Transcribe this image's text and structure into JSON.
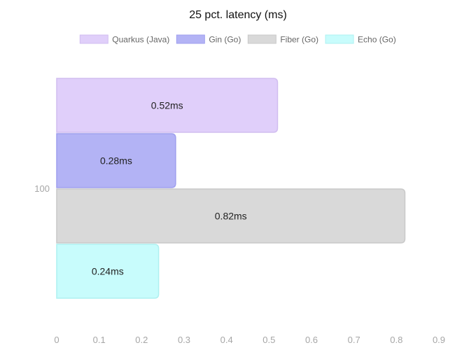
{
  "chart_data": {
    "type": "bar",
    "orientation": "horizontal",
    "title": "25 pct. latency (ms)",
    "categories": [
      "100"
    ],
    "xlim": [
      0,
      0.9
    ],
    "x_ticks": [
      "0",
      "0.1",
      "0.2",
      "0.3",
      "0.4",
      "0.5",
      "0.6",
      "0.7",
      "0.8",
      "0.9"
    ],
    "grid": false,
    "legend_position": "top",
    "series": [
      {
        "name": "Quarkus (Java)",
        "values": [
          0.52
        ],
        "label": "0.52ms",
        "color": "#e0cffa",
        "border": "#d1bdf0"
      },
      {
        "name": "Gin (Go)",
        "values": [
          0.28
        ],
        "label": "0.28ms",
        "color": "#b3b3f5",
        "border": "#9f9fee"
      },
      {
        "name": "Fiber (Go)",
        "values": [
          0.82
        ],
        "label": "0.82ms",
        "color": "#d9d9d9",
        "border": "#c9c9c9"
      },
      {
        "name": "Echo (Go)",
        "values": [
          0.24
        ],
        "label": "0.24ms",
        "color": "#c8fcfc",
        "border": "#aef0f0"
      }
    ]
  }
}
